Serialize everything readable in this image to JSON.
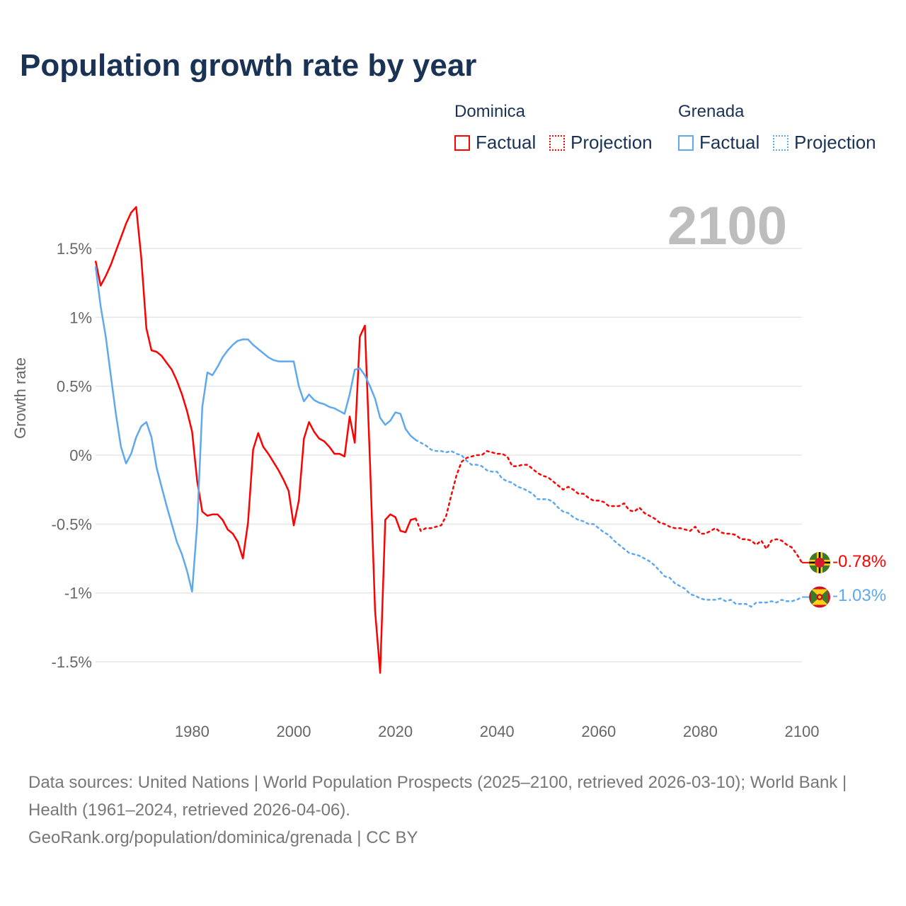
{
  "title": "Population growth rate by year",
  "current_year": "2100",
  "legend": {
    "groups": [
      {
        "name": "Dominica",
        "factual": "Factual",
        "projection": "Projection",
        "color": "#ff0000"
      },
      {
        "name": "Grenada",
        "factual": "Factual",
        "projection": "Projection",
        "color": "#5fa8ee"
      }
    ]
  },
  "end_labels": {
    "dominica": "-0.78%",
    "grenada": "-1.03%"
  },
  "footer": {
    "sources": "Data sources: United Nations | World Population Prospects (2025–2100, retrieved 2026-03-10); World Bank | Health (1961–2024, retrieved 2026-04-06).",
    "credit": "GeoRank.org/population/dominica/grenada | CC BY"
  },
  "chart_data": {
    "type": "line",
    "title": "Population growth rate by year",
    "xlabel": "",
    "ylabel": "Growth rate",
    "xlim": [
      1961,
      2100
    ],
    "ylim": [
      -1.8,
      1.85
    ],
    "x_ticks": [
      1980,
      2000,
      2020,
      2040,
      2060,
      2080,
      2100
    ],
    "y_ticks": [
      1.5,
      1,
      0.5,
      0,
      -0.5,
      -1,
      -1.5
    ],
    "y_tick_labels": [
      "1.5%",
      "1%",
      "0.5%",
      "0%",
      "-0.5%",
      "-1%",
      "-1.5%"
    ],
    "grid": true,
    "legend_position": "top-right",
    "series": [
      {
        "name": "Dominica Factual",
        "color": "#ff0000",
        "style": "solid",
        "start_year": 1961,
        "values": [
          1.41,
          1.23,
          1.3,
          1.38,
          1.48,
          1.58,
          1.68,
          1.76,
          1.8,
          1.43,
          0.92,
          0.76,
          0.75,
          0.72,
          0.67,
          0.62,
          0.54,
          0.44,
          0.32,
          0.17,
          -0.19,
          -0.41,
          -0.44,
          -0.43,
          -0.43,
          -0.47,
          -0.54,
          -0.57,
          -0.63,
          -0.75,
          -0.49,
          0.04,
          0.16,
          0.06,
          0.01,
          -0.05,
          -0.11,
          -0.18,
          -0.26,
          -0.51,
          -0.33,
          0.12,
          0.24,
          0.17,
          0.12,
          0.1,
          0.06,
          0.01,
          0.01,
          -0.01,
          0.28,
          0.09,
          0.86,
          0.94,
          -0.05,
          -1.13,
          -1.58,
          -0.47,
          -0.43,
          -0.45,
          -0.55,
          -0.56,
          -0.47,
          -0.46
        ]
      },
      {
        "name": "Dominica Projection",
        "color": "#ff0000",
        "style": "dotted",
        "start_year": 2024,
        "values": [
          -0.46,
          -0.55,
          -0.53,
          -0.53,
          -0.52,
          -0.51,
          -0.44,
          -0.29,
          -0.15,
          -0.05,
          -0.02,
          -0.01,
          0.0,
          0.0,
          0.03,
          0.02,
          0.01,
          0.01,
          -0.01,
          -0.08,
          -0.08,
          -0.07,
          -0.07,
          -0.1,
          -0.13,
          -0.15,
          -0.16,
          -0.19,
          -0.22,
          -0.25,
          -0.23,
          -0.25,
          -0.28,
          -0.28,
          -0.31,
          -0.33,
          -0.33,
          -0.34,
          -0.37,
          -0.37,
          -0.37,
          -0.35,
          -0.4,
          -0.41,
          -0.38,
          -0.42,
          -0.44,
          -0.46,
          -0.49,
          -0.5,
          -0.52,
          -0.53,
          -0.53,
          -0.54,
          -0.55,
          -0.52,
          -0.57,
          -0.57,
          -0.55,
          -0.53,
          -0.56,
          -0.57,
          -0.57,
          -0.58,
          -0.61,
          -0.61,
          -0.62,
          -0.65,
          -0.62,
          -0.68,
          -0.62,
          -0.61,
          -0.62,
          -0.65,
          -0.67,
          -0.72,
          -0.78
        ]
      },
      {
        "name": "Grenada Factual",
        "color": "#5fa8ee",
        "style": "solid",
        "start_year": 1961,
        "values": [
          1.37,
          1.08,
          0.86,
          0.58,
          0.3,
          0.06,
          -0.06,
          0.01,
          0.13,
          0.21,
          0.24,
          0.13,
          -0.09,
          -0.23,
          -0.37,
          -0.5,
          -0.63,
          -0.72,
          -0.84,
          -0.99,
          -0.5,
          0.35,
          0.6,
          0.58,
          0.64,
          0.71,
          0.76,
          0.8,
          0.83,
          0.84,
          0.84,
          0.8,
          0.77,
          0.74,
          0.71,
          0.69,
          0.68,
          0.68,
          0.68,
          0.68,
          0.5,
          0.39,
          0.44,
          0.4,
          0.38,
          0.37,
          0.35,
          0.34,
          0.32,
          0.3,
          0.44,
          0.62,
          0.63,
          0.58,
          0.5,
          0.41,
          0.27,
          0.22,
          0.25,
          0.31,
          0.3,
          0.19,
          0.14,
          0.11
        ]
      },
      {
        "name": "Grenada Projection",
        "color": "#5fa8ee",
        "style": "dotted",
        "start_year": 2024,
        "values": [
          0.11,
          0.09,
          0.07,
          0.04,
          0.03,
          0.03,
          0.02,
          0.03,
          0.01,
          0.0,
          -0.04,
          -0.07,
          -0.07,
          -0.08,
          -0.11,
          -0.12,
          -0.12,
          -0.17,
          -0.19,
          -0.2,
          -0.23,
          -0.24,
          -0.26,
          -0.28,
          -0.32,
          -0.32,
          -0.32,
          -0.34,
          -0.38,
          -0.41,
          -0.42,
          -0.45,
          -0.47,
          -0.48,
          -0.5,
          -0.5,
          -0.53,
          -0.56,
          -0.58,
          -0.62,
          -0.65,
          -0.68,
          -0.71,
          -0.72,
          -0.73,
          -0.75,
          -0.77,
          -0.8,
          -0.84,
          -0.88,
          -0.89,
          -0.93,
          -0.95,
          -0.97,
          -1.01,
          -1.02,
          -1.04,
          -1.05,
          -1.05,
          -1.05,
          -1.04,
          -1.06,
          -1.05,
          -1.08,
          -1.08,
          -1.08,
          -1.1,
          -1.07,
          -1.07,
          -1.07,
          -1.06,
          -1.07,
          -1.05,
          -1.06,
          -1.06,
          -1.05,
          -1.03
        ]
      }
    ]
  }
}
